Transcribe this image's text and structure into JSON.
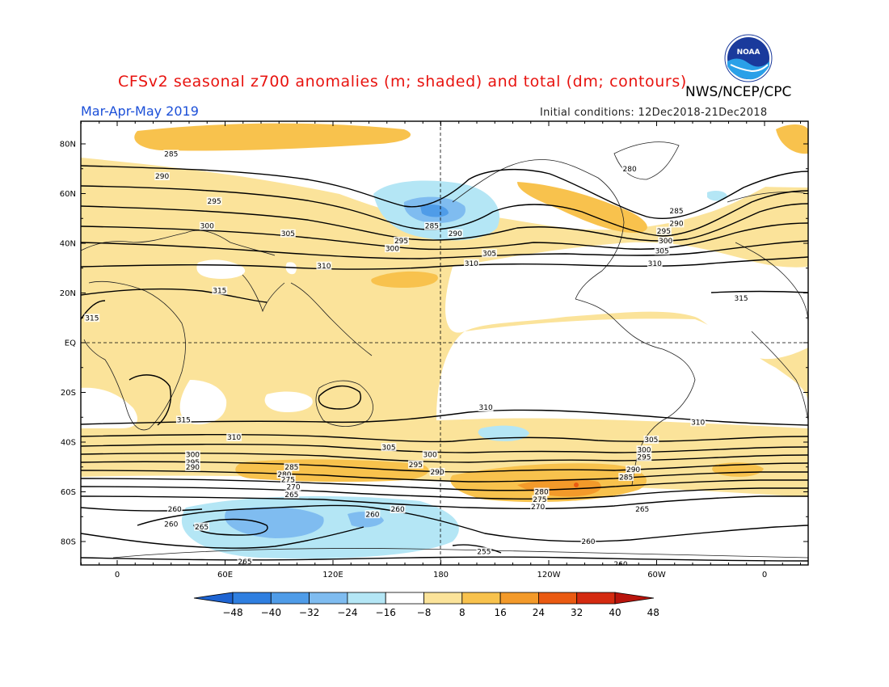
{
  "title": "CFSv2 seasonal z700 anomalies (m; shaded) and total (dm; contours)",
  "agency": "NWS/NCEP/CPC",
  "logo_text": "NOAA",
  "season": "Mar-Apr-May 2019",
  "initial_conditions": "Initial conditions: 12Dec2018-21Dec2018",
  "lat_labels": [
    "80N",
    "60N",
    "40N",
    "20N",
    "EQ",
    "20S",
    "40S",
    "60S",
    "80S"
  ],
  "lon_labels": [
    "0",
    "60E",
    "120E",
    "180",
    "120W",
    "60W",
    "0"
  ],
  "colorbar": {
    "ticks": [
      "-48",
      "-40",
      "-32",
      "-24",
      "-16",
      "-8",
      "8",
      "16",
      "24",
      "32",
      "40",
      "48"
    ],
    "colors": [
      "#1e64d2",
      "#2f7fe0",
      "#4f9ce8",
      "#7fbcf0",
      "#b4e6f5",
      "#ffffff",
      "#fbe39a",
      "#f8c24d",
      "#f39a2a",
      "#ea5a12",
      "#d42a10",
      "#b8140c"
    ]
  },
  "contour_labels": [
    {
      "text": "285",
      "lon": 30,
      "lat": 76
    },
    {
      "text": "290",
      "lon": 25,
      "lat": 67
    },
    {
      "text": "295",
      "lon": 54,
      "lat": 57
    },
    {
      "text": "300",
      "lon": 50,
      "lat": 47
    },
    {
      "text": "305",
      "lon": 95,
      "lat": 44
    },
    {
      "text": "310",
      "lon": 115,
      "lat": 31
    },
    {
      "text": "315",
      "lon": 57,
      "lat": 21
    },
    {
      "text": "315",
      "lon": -14,
      "lat": 10
    },
    {
      "text": "285",
      "lon": 175,
      "lat": 47
    },
    {
      "text": "290",
      "lon": 188,
      "lat": 44
    },
    {
      "text": "295",
      "lon": 158,
      "lat": 41
    },
    {
      "text": "300",
      "lon": 153,
      "lat": 38
    },
    {
      "text": "305",
      "lon": 207,
      "lat": 36
    },
    {
      "text": "310",
      "lon": 197,
      "lat": 32
    },
    {
      "text": "280",
      "lon": 285,
      "lat": 70
    },
    {
      "text": "285",
      "lon": 311,
      "lat": 53
    },
    {
      "text": "290",
      "lon": 311,
      "lat": 48
    },
    {
      "text": "295",
      "lon": 304,
      "lat": 45
    },
    {
      "text": "300",
      "lon": 305,
      "lat": 41
    },
    {
      "text": "305",
      "lon": 303,
      "lat": 37
    },
    {
      "text": "310",
      "lon": 299,
      "lat": 32
    },
    {
      "text": "315",
      "lon": 347,
      "lat": 18
    },
    {
      "text": "315",
      "lon": 37,
      "lat": -31
    },
    {
      "text": "310",
      "lon": 65,
      "lat": -38
    },
    {
      "text": "305",
      "lon": 151,
      "lat": -42
    },
    {
      "text": "300",
      "lon": 174,
      "lat": -45
    },
    {
      "text": "295",
      "lon": 166,
      "lat": -49
    },
    {
      "text": "290",
      "lon": 178,
      "lat": -52
    },
    {
      "text": "310",
      "lon": 205,
      "lat": -26
    },
    {
      "text": "310",
      "lon": 323,
      "lat": -32
    },
    {
      "text": "305",
      "lon": 297,
      "lat": -39
    },
    {
      "text": "300",
      "lon": 293,
      "lat": -43
    },
    {
      "text": "295",
      "lon": 293,
      "lat": -46
    },
    {
      "text": "290",
      "lon": 287,
      "lat": -51
    },
    {
      "text": "285",
      "lon": 283,
      "lat": -54
    },
    {
      "text": "300",
      "lon": 42,
      "lat": -45
    },
    {
      "text": "295",
      "lon": 42,
      "lat": -48
    },
    {
      "text": "290",
      "lon": 42,
      "lat": -50
    },
    {
      "text": "285",
      "lon": 97,
      "lat": -50
    },
    {
      "text": "280",
      "lon": 93,
      "lat": -53
    },
    {
      "text": "275",
      "lon": 95,
      "lat": -55
    },
    {
      "text": "270",
      "lon": 98,
      "lat": -58
    },
    {
      "text": "265",
      "lon": 97,
      "lat": -61
    },
    {
      "text": "280",
      "lon": 236,
      "lat": -60
    },
    {
      "text": "275",
      "lon": 235,
      "lat": -63
    },
    {
      "text": "270",
      "lon": 234,
      "lat": -66
    },
    {
      "text": "265",
      "lon": 292,
      "lat": -67
    },
    {
      "text": "260",
      "lon": 32,
      "lat": -67
    },
    {
      "text": "260",
      "lon": 30,
      "lat": -73
    },
    {
      "text": "265",
      "lon": 47,
      "lat": -74
    },
    {
      "text": "260",
      "lon": 142,
      "lat": -69
    },
    {
      "text": "260",
      "lon": 156,
      "lat": -67
    },
    {
      "text": "255",
      "lon": 204,
      "lat": -84
    },
    {
      "text": "260",
      "lon": 262,
      "lat": -80
    },
    {
      "text": "260",
      "lon": 280,
      "lat": -89
    },
    {
      "text": "265",
      "lon": 71,
      "lat": -88
    }
  ]
}
